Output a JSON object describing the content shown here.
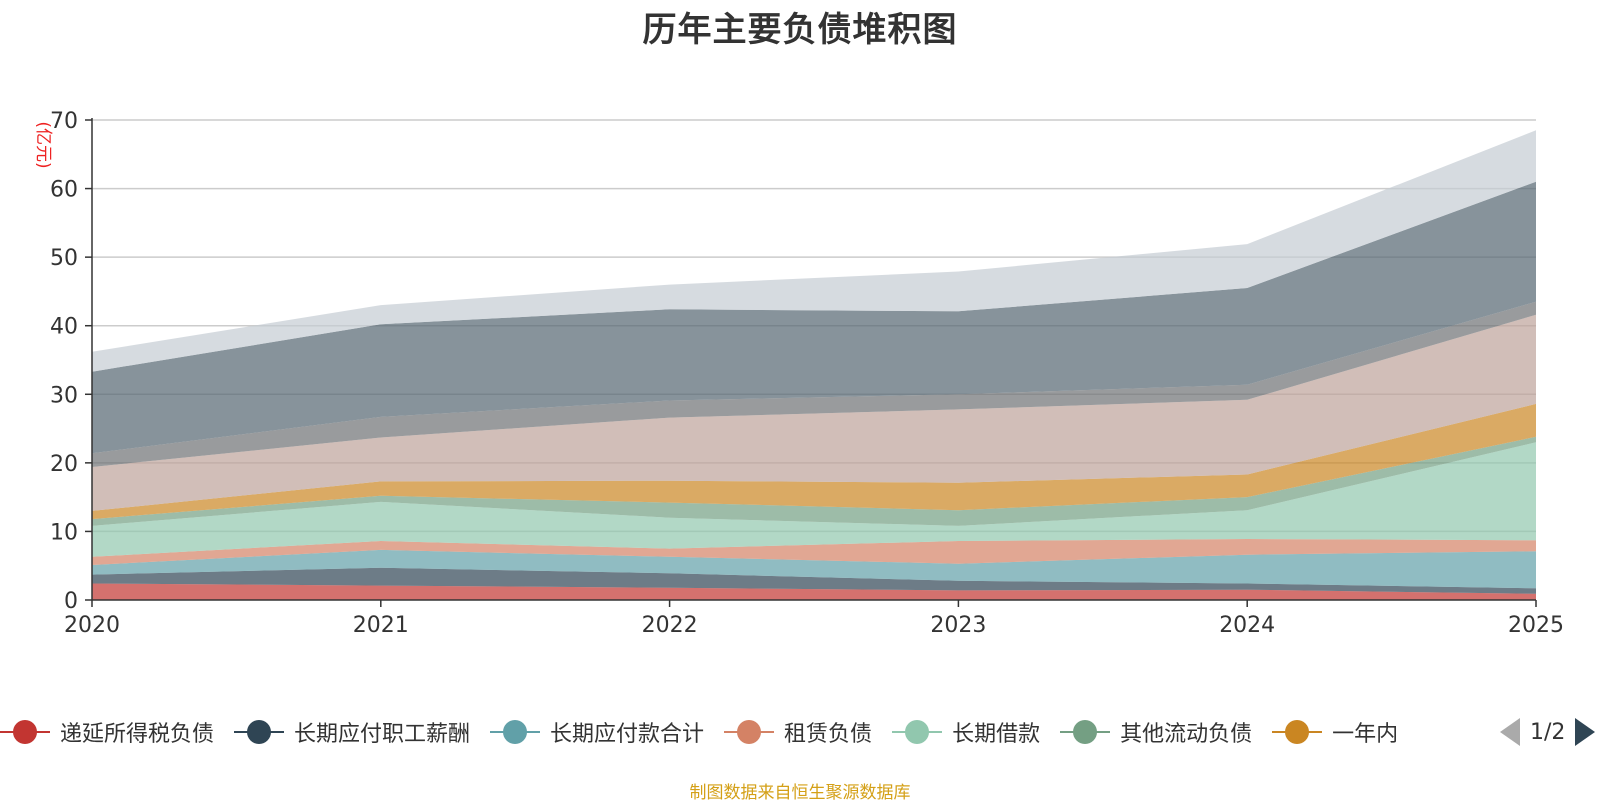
{
  "chart_data": {
    "type": "area",
    "title": "历年主要负债堆积图",
    "ylabel": "(亿元)",
    "xlabel": "",
    "categories": [
      "2020",
      "2021",
      "2022",
      "2023",
      "2024",
      "2025"
    ],
    "ylim": [
      0,
      70
    ],
    "yticks": [
      0,
      10,
      20,
      30,
      40,
      50,
      60,
      70
    ],
    "stacked": true,
    "grid": true,
    "series": [
      {
        "name": "递延所得税负债",
        "color": "#c23531",
        "in_legend": true,
        "values": [
          2.4,
          2.1,
          1.8,
          1.4,
          1.5,
          0.9
        ]
      },
      {
        "name": "长期应付职工薪酬",
        "color": "#2f4554",
        "in_legend": true,
        "values": [
          1.3,
          2.6,
          2.1,
          1.4,
          0.9,
          0.8
        ]
      },
      {
        "name": "长期应付款合计",
        "color": "#61a0a8",
        "in_legend": true,
        "values": [
          1.4,
          2.6,
          2.4,
          2.5,
          4.2,
          5.4
        ]
      },
      {
        "name": "租赁负债",
        "color": "#d48265",
        "in_legend": true,
        "values": [
          1.2,
          1.3,
          1.2,
          3.3,
          2.3,
          1.6
        ]
      },
      {
        "name": "长期借款",
        "color": "#91c7ae",
        "in_legend": true,
        "values": [
          4.5,
          5.7,
          4.5,
          2.2,
          4.2,
          14.3
        ]
      },
      {
        "name": "其他流动负债",
        "color": "#749f83",
        "in_legend": true,
        "values": [
          1.0,
          0.9,
          2.2,
          2.3,
          1.9,
          0.8
        ]
      },
      {
        "name": "一年内",
        "color": "#ca8622",
        "in_legend": true,
        "values": [
          1.2,
          2.1,
          3.2,
          4.0,
          3.3,
          4.8
        ]
      },
      {
        "name": "",
        "color": "#bda29a",
        "in_legend": false,
        "values": [
          6.4,
          6.4,
          9.2,
          10.7,
          10.9,
          13.0
        ]
      },
      {
        "name": "",
        "color": "#6e7074",
        "in_legend": false,
        "values": [
          2.0,
          3.0,
          2.5,
          2.2,
          2.2,
          1.9
        ]
      },
      {
        "name": "",
        "color": "#546570",
        "in_legend": false,
        "values": [
          11.9,
          13.5,
          13.3,
          12.1,
          14.1,
          17.5
        ]
      },
      {
        "name": "",
        "color": "#c4ccd3",
        "in_legend": false,
        "values": [
          2.9,
          2.8,
          3.6,
          5.8,
          6.4,
          7.5
        ]
      }
    ]
  },
  "legend": {
    "pager_text": "1/2"
  },
  "source_note": {
    "text": "制图数据来自恒生聚源数据库",
    "color": "#d4a017"
  },
  "style": {
    "ylabel_color": "#ee2222",
    "axis_color": "#333333",
    "grid_color": "#cccccc"
  }
}
